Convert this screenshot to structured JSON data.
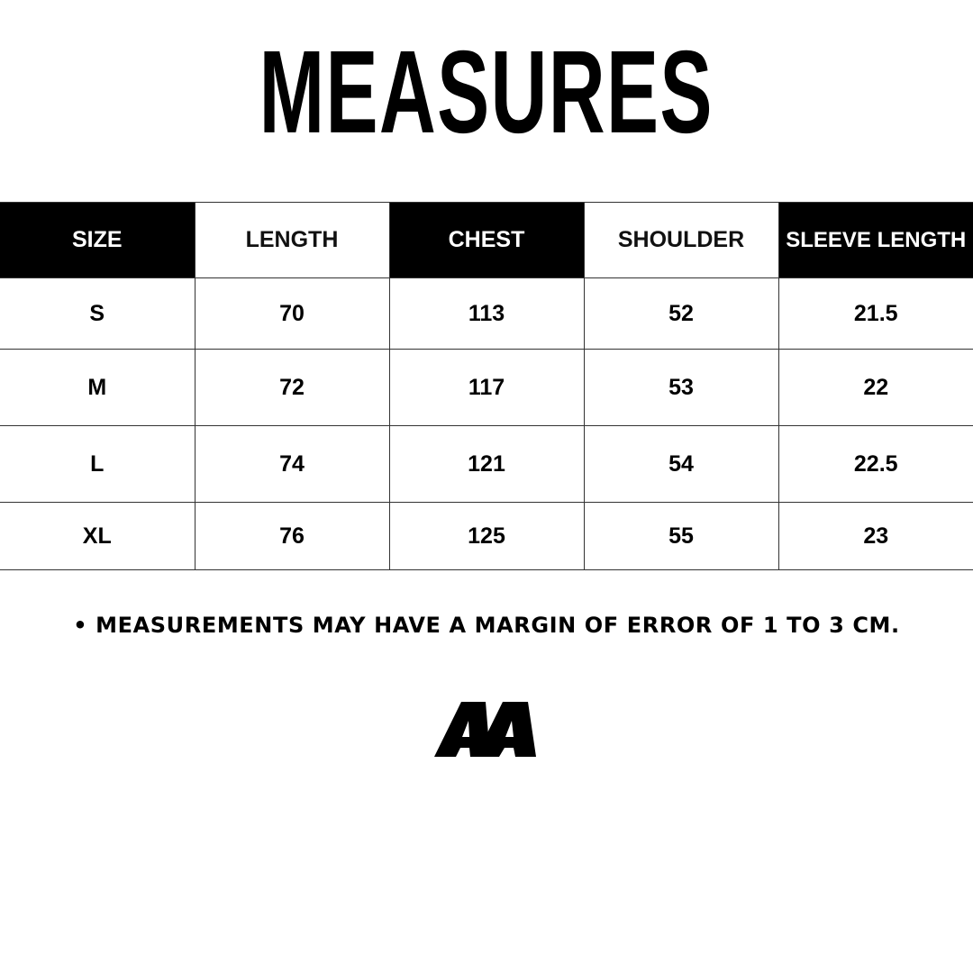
{
  "title": "MEASURES",
  "table": {
    "headers": [
      "SIZE",
      "LENGTH",
      "CHEST",
      "SHOULDER",
      "SLEEVE LENGTH"
    ],
    "rows": [
      [
        "S",
        "70",
        "113",
        "52",
        "21.5"
      ],
      [
        "M",
        "72",
        "117",
        "53",
        "22"
      ],
      [
        "L",
        "74",
        "121",
        "54",
        "22.5"
      ],
      [
        "XL",
        "76",
        "125",
        "55",
        "23"
      ]
    ]
  },
  "note": "• MEASUREMENTS MAY HAVE A MARGIN OF ERROR OF 1 TO 3 CM.",
  "logo": {
    "text": "AA"
  },
  "colors": {
    "header_dark": "#000000",
    "text": "#000000",
    "background": "#ffffff"
  }
}
